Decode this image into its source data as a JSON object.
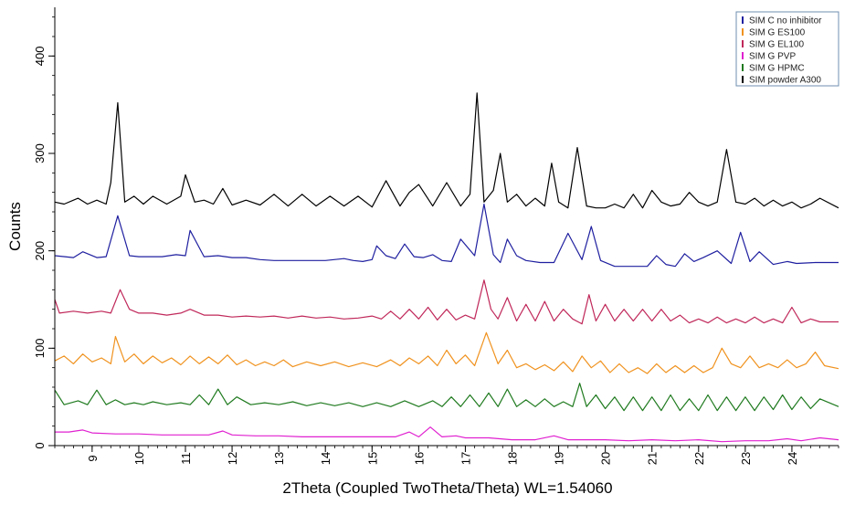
{
  "chart_data": {
    "type": "line",
    "title": "",
    "xlabel": "2Theta (Coupled TwoTheta/Theta) WL=1.54060",
    "ylabel": "Counts",
    "xlim": [
      8.2,
      25.0
    ],
    "ylim": [
      0,
      450
    ],
    "x_ticks": [
      9,
      10,
      11,
      12,
      13,
      14,
      15,
      16,
      17,
      18,
      19,
      20,
      21,
      22,
      23,
      24
    ],
    "x_tick_labels": [
      "9",
      "10",
      "11",
      "12",
      "13",
      "14",
      "15",
      "16",
      "17",
      "18",
      "19",
      "20",
      "21",
      "22",
      "23",
      "24"
    ],
    "y_ticks": [
      0,
      100,
      200,
      300,
      400
    ],
    "y_tick_labels": [
      "0",
      "100",
      "200",
      "300",
      "400"
    ],
    "grid": false,
    "legend_position": "top-right",
    "series": [
      {
        "name": "SIM C no inhibitor",
        "color": "#1f1fa0",
        "x": [
          8.2,
          8.6,
          8.8,
          9.1,
          9.3,
          9.55,
          9.8,
          10.0,
          10.5,
          10.8,
          11.0,
          11.1,
          11.4,
          11.7,
          12.0,
          12.3,
          12.6,
          12.9,
          13.2,
          13.6,
          14.0,
          14.4,
          14.6,
          14.8,
          15.0,
          15.1,
          15.3,
          15.5,
          15.7,
          15.9,
          16.1,
          16.3,
          16.5,
          16.7,
          16.9,
          17.2,
          17.4,
          17.6,
          17.75,
          17.9,
          18.1,
          18.3,
          18.6,
          18.9,
          19.2,
          19.5,
          19.7,
          19.9,
          20.2,
          20.6,
          20.9,
          21.1,
          21.3,
          21.5,
          21.7,
          21.9,
          22.1,
          22.4,
          22.7,
          22.9,
          23.1,
          23.3,
          23.6,
          23.9,
          24.1,
          24.5,
          25.0
        ],
        "values": [
          195,
          193,
          199,
          193,
          194,
          236,
          195,
          194,
          194,
          196,
          195,
          221,
          194,
          195,
          193,
          193,
          191,
          190,
          190,
          190,
          190,
          192,
          190,
          189,
          191,
          205,
          195,
          192,
          207,
          194,
          193,
          196,
          190,
          189,
          212,
          195,
          248,
          196,
          188,
          212,
          195,
          190,
          188,
          188,
          218,
          191,
          225,
          190,
          184,
          184,
          184,
          195,
          186,
          184,
          197,
          189,
          193,
          200,
          187,
          219,
          189,
          199,
          186,
          189,
          187,
          188,
          188
        ]
      },
      {
        "name": "SIM G ES100",
        "color": "#f0921e",
        "x": [
          8.2,
          8.4,
          8.6,
          8.8,
          9.0,
          9.2,
          9.4,
          9.5,
          9.7,
          9.9,
          10.1,
          10.3,
          10.5,
          10.7,
          10.9,
          11.1,
          11.3,
          11.5,
          11.7,
          11.9,
          12.1,
          12.3,
          12.5,
          12.7,
          12.9,
          13.1,
          13.3,
          13.6,
          13.9,
          14.2,
          14.5,
          14.8,
          15.1,
          15.4,
          15.6,
          15.8,
          16.0,
          16.2,
          16.4,
          16.6,
          16.8,
          17.0,
          17.2,
          17.45,
          17.7,
          17.9,
          18.1,
          18.3,
          18.5,
          18.7,
          18.9,
          19.1,
          19.3,
          19.5,
          19.7,
          19.9,
          20.1,
          20.3,
          20.5,
          20.7,
          20.9,
          21.1,
          21.3,
          21.5,
          21.7,
          21.9,
          22.1,
          22.3,
          22.5,
          22.7,
          22.9,
          23.1,
          23.3,
          23.5,
          23.7,
          23.9,
          24.1,
          24.3,
          24.5,
          24.7,
          25.0
        ],
        "values": [
          87,
          92,
          84,
          94,
          86,
          90,
          84,
          112,
          86,
          94,
          84,
          92,
          85,
          90,
          83,
          92,
          84,
          91,
          84,
          93,
          83,
          88,
          82,
          86,
          82,
          88,
          81,
          86,
          82,
          86,
          81,
          85,
          81,
          88,
          82,
          90,
          84,
          92,
          82,
          98,
          84,
          93,
          82,
          116,
          84,
          98,
          80,
          84,
          78,
          83,
          77,
          86,
          76,
          92,
          80,
          87,
          75,
          84,
          75,
          80,
          74,
          84,
          75,
          82,
          75,
          82,
          75,
          80,
          100,
          84,
          80,
          92,
          80,
          84,
          80,
          88,
          80,
          84,
          96,
          82,
          79
        ]
      },
      {
        "name": "SIM G EL100",
        "color": "#c0285a",
        "x": [
          8.2,
          8.3,
          8.6,
          8.9,
          9.2,
          9.4,
          9.6,
          9.8,
          10.0,
          10.3,
          10.6,
          10.9,
          11.1,
          11.4,
          11.7,
          12.0,
          12.3,
          12.6,
          12.9,
          13.2,
          13.5,
          13.8,
          14.1,
          14.4,
          14.7,
          15.0,
          15.2,
          15.4,
          15.6,
          15.8,
          16.0,
          16.2,
          16.4,
          16.6,
          16.8,
          17.0,
          17.2,
          17.4,
          17.55,
          17.7,
          17.9,
          18.1,
          18.3,
          18.5,
          18.7,
          18.9,
          19.1,
          19.3,
          19.5,
          19.65,
          19.8,
          20.0,
          20.2,
          20.4,
          20.6,
          20.8,
          21.0,
          21.2,
          21.4,
          21.6,
          21.8,
          22.0,
          22.2,
          22.4,
          22.6,
          22.8,
          23.0,
          23.2,
          23.4,
          23.6,
          23.8,
          24.0,
          24.2,
          24.4,
          24.6,
          25.0
        ],
        "values": [
          150,
          136,
          138,
          136,
          138,
          136,
          160,
          140,
          136,
          136,
          134,
          136,
          140,
          134,
          134,
          132,
          133,
          132,
          133,
          131,
          133,
          131,
          132,
          130,
          131,
          133,
          130,
          138,
          130,
          140,
          130,
          142,
          129,
          140,
          129,
          134,
          130,
          170,
          140,
          130,
          152,
          128,
          145,
          128,
          148,
          128,
          140,
          130,
          125,
          155,
          128,
          145,
          128,
          140,
          128,
          140,
          128,
          140,
          128,
          134,
          126,
          130,
          126,
          132,
          126,
          130,
          126,
          132,
          126,
          130,
          126,
          142,
          126,
          130,
          127,
          127
        ]
      },
      {
        "name": "SIM G PVP",
        "color": "#e020d0",
        "x": [
          8.2,
          8.5,
          8.8,
          9.0,
          9.5,
          10.0,
          10.5,
          11.0,
          11.5,
          11.8,
          12.0,
          12.5,
          13.0,
          13.5,
          14.0,
          14.5,
          15.0,
          15.5,
          15.8,
          16.0,
          16.25,
          16.5,
          16.8,
          17.0,
          17.5,
          18.0,
          18.5,
          18.9,
          19.2,
          19.5,
          20.0,
          20.5,
          21.0,
          21.5,
          22.0,
          22.5,
          23.0,
          23.5,
          23.9,
          24.2,
          24.6,
          25.0
        ],
        "values": [
          14,
          14,
          16,
          13,
          12,
          12,
          11,
          11,
          11,
          15,
          11,
          10,
          10,
          9,
          9,
          9,
          9,
          9,
          14,
          9,
          19,
          9,
          10,
          8,
          8,
          6,
          6,
          10,
          6,
          6,
          6,
          5,
          6,
          5,
          6,
          4,
          5,
          5,
          7,
          5,
          8,
          6
        ]
      },
      {
        "name": "SIM G HPMC",
        "color": "#1f7a1f",
        "x": [
          8.2,
          8.4,
          8.7,
          8.9,
          9.1,
          9.3,
          9.5,
          9.7,
          9.9,
          10.1,
          10.3,
          10.6,
          10.9,
          11.1,
          11.3,
          11.5,
          11.7,
          11.9,
          12.1,
          12.4,
          12.7,
          13.0,
          13.3,
          13.6,
          13.9,
          14.2,
          14.5,
          14.8,
          15.1,
          15.4,
          15.7,
          16.0,
          16.3,
          16.5,
          16.7,
          16.9,
          17.1,
          17.3,
          17.5,
          17.7,
          17.9,
          18.1,
          18.3,
          18.5,
          18.7,
          18.9,
          19.1,
          19.3,
          19.45,
          19.6,
          19.8,
          20.0,
          20.2,
          20.4,
          20.6,
          20.8,
          21.0,
          21.2,
          21.4,
          21.6,
          21.8,
          22.0,
          22.2,
          22.4,
          22.6,
          22.8,
          23.0,
          23.2,
          23.4,
          23.6,
          23.8,
          24.0,
          24.2,
          24.4,
          24.6,
          25.0
        ],
        "values": [
          57,
          42,
          46,
          42,
          57,
          42,
          47,
          42,
          44,
          42,
          45,
          42,
          44,
          42,
          52,
          42,
          58,
          42,
          50,
          42,
          44,
          42,
          45,
          41,
          44,
          41,
          44,
          40,
          44,
          40,
          46,
          40,
          46,
          40,
          50,
          40,
          52,
          40,
          54,
          40,
          58,
          40,
          47,
          40,
          48,
          40,
          45,
          40,
          64,
          40,
          52,
          38,
          50,
          36,
          50,
          36,
          50,
          36,
          52,
          36,
          48,
          36,
          52,
          36,
          50,
          36,
          50,
          36,
          50,
          37,
          52,
          37,
          50,
          38,
          48,
          40
        ]
      },
      {
        "name": "SIM powder A300",
        "color": "#000000",
        "x": [
          8.2,
          8.4,
          8.7,
          8.9,
          9.1,
          9.3,
          9.4,
          9.55,
          9.7,
          9.9,
          10.1,
          10.3,
          10.6,
          10.9,
          11.0,
          11.2,
          11.4,
          11.6,
          11.8,
          12.0,
          12.3,
          12.6,
          12.9,
          13.2,
          13.5,
          13.8,
          14.1,
          14.4,
          14.7,
          15.0,
          15.3,
          15.6,
          15.8,
          16.0,
          16.3,
          16.6,
          16.9,
          17.1,
          17.25,
          17.4,
          17.6,
          17.75,
          17.9,
          18.1,
          18.3,
          18.5,
          18.7,
          18.85,
          19.0,
          19.2,
          19.4,
          19.6,
          19.8,
          20.0,
          20.2,
          20.4,
          20.6,
          20.8,
          21.0,
          21.2,
          21.4,
          21.6,
          21.8,
          22.0,
          22.2,
          22.4,
          22.6,
          22.8,
          23.0,
          23.2,
          23.4,
          23.6,
          23.8,
          24.0,
          24.2,
          24.4,
          24.6,
          25.0
        ],
        "values": [
          250,
          248,
          254,
          248,
          252,
          248,
          270,
          352,
          250,
          256,
          248,
          256,
          248,
          256,
          278,
          250,
          252,
          248,
          264,
          247,
          252,
          247,
          258,
          246,
          258,
          246,
          256,
          246,
          256,
          245,
          272,
          246,
          260,
          268,
          246,
          270,
          246,
          258,
          362,
          250,
          262,
          300,
          250,
          258,
          246,
          254,
          246,
          290,
          250,
          244,
          306,
          246,
          244,
          244,
          248,
          244,
          258,
          244,
          262,
          250,
          246,
          248,
          260,
          250,
          246,
          250,
          304,
          250,
          248,
          254,
          246,
          252,
          246,
          250,
          244,
          248,
          254,
          244
        ]
      }
    ]
  }
}
